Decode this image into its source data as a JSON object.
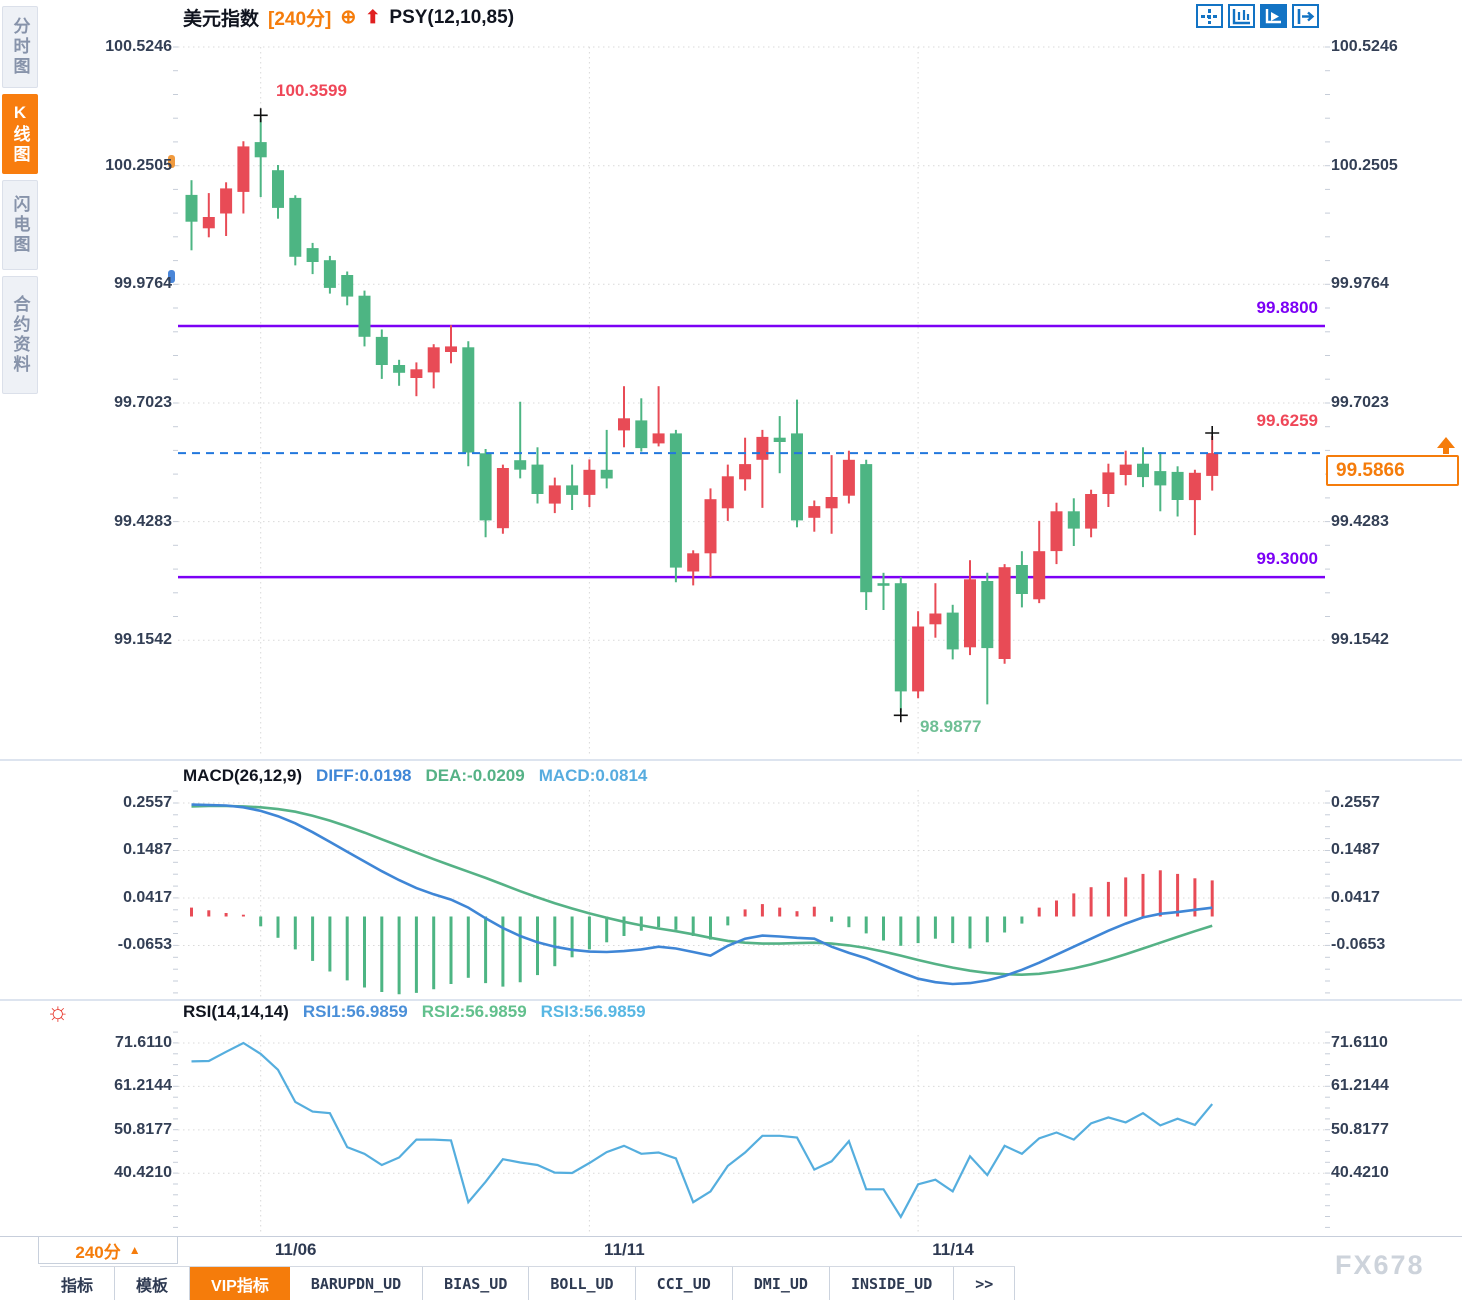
{
  "header": {
    "symbol": "美元指数",
    "period_tag": "[240分]",
    "add_icon": "⊕",
    "arrow_icon": "⬆",
    "indicator": "PSY(12,10,85)"
  },
  "sidebar": {
    "tabs": [
      {
        "label": "分时图",
        "active": false
      },
      {
        "label": "K线图",
        "active": true
      },
      {
        "label": "闪电图",
        "active": false
      },
      {
        "label": "合约资料",
        "active": false
      }
    ]
  },
  "toolbar_icons": [
    "crosshair-tool",
    "axis-range-tool",
    "axis-play-tool",
    "export-tool"
  ],
  "overlays": {
    "high_label": "100.3599",
    "low_label": "98.9877",
    "last_high_label": "99.6259",
    "hline_upper_label": "99.8800",
    "hline_lower_label": "99.3000",
    "price_box_value": "99.5866"
  },
  "macd_header": {
    "title": "MACD(26,12,9)",
    "diff_label": "DIFF:0.0198",
    "dea_label": "DEA:-0.0209",
    "macd_label": "MACD:0.0814"
  },
  "rsi_header": {
    "title": "RSI(14,14,14)",
    "rsi1_label": "RSI1:56.9859",
    "rsi2_label": "RSI2:56.9859",
    "rsi3_label": "RSI3:56.9859"
  },
  "footer": {
    "period": "240分",
    "period_arrow": "▲",
    "dates": [
      "11/06",
      "11/11",
      "11/14"
    ],
    "tabs": [
      {
        "label": "指标",
        "mono": false,
        "active": false
      },
      {
        "label": "模板",
        "mono": false,
        "active": false
      },
      {
        "label": "VIP指标",
        "mono": false,
        "active": true
      },
      {
        "label": "BARUPDN_UD",
        "mono": true,
        "active": false
      },
      {
        "label": "BIAS_UD",
        "mono": true,
        "active": false
      },
      {
        "label": "BOLL_UD",
        "mono": true,
        "active": false
      },
      {
        "label": "CCI_UD",
        "mono": true,
        "active": false
      },
      {
        "label": "DMI_UD",
        "mono": true,
        "active": false
      },
      {
        "label": "INSIDE_UD",
        "mono": true,
        "active": false
      },
      {
        "label": ">>",
        "mono": true,
        "active": false
      }
    ],
    "watermark": "FX678"
  },
  "colors": {
    "up_red": "#e84b56",
    "down_green": "#4db583",
    "purple_line": "#7c00f5",
    "dashed_blue": "#2277dd",
    "diff_blue": "#3f86d6",
    "dea_green": "#55b286",
    "macd_cyan": "#57acdf",
    "rsi_line": "#55aede",
    "accent_orange": "#f57c0b",
    "annotation_red": "#ef4758",
    "annotation_green": "#6fbf95",
    "axis_text": "#333f55",
    "icon_blue": "#1273c4",
    "grid_dot": "#d9d9d9"
  },
  "chart_data": [
    {
      "type": "candlestick",
      "title": "美元指数 240分 K线",
      "y_ticks": [
        100.5246,
        100.2505,
        99.9764,
        99.7023,
        99.4283,
        99.1542
      ],
      "date_ticks": [
        {
          "label": "11/06",
          "bar": 4
        },
        {
          "label": "11/11",
          "bar": 23
        },
        {
          "label": "11/14",
          "bar": 42
        }
      ],
      "hlines": [
        99.88,
        99.3
      ],
      "current_price": 99.5866,
      "markers": [
        {
          "bar": 4,
          "type": "high",
          "price": 100.3599
        },
        {
          "bar": 41,
          "type": "low",
          "price": 98.9877
        },
        {
          "bar": 59,
          "type": "high",
          "price": 99.6259
        }
      ],
      "ohlc": [
        [
          100.183,
          100.217,
          100.055,
          100.121
        ],
        [
          100.106,
          100.187,
          100.085,
          100.132
        ],
        [
          100.14,
          100.212,
          100.088,
          100.198
        ],
        [
          100.19,
          100.307,
          100.14,
          100.295
        ],
        [
          100.305,
          100.3599,
          100.178,
          100.27
        ],
        [
          100.24,
          100.252,
          100.128,
          100.153
        ],
        [
          100.176,
          100.182,
          100.02,
          100.04
        ],
        [
          100.06,
          100.072,
          100.0,
          100.028
        ],
        [
          100.032,
          100.042,
          99.955,
          99.968
        ],
        [
          99.998,
          100.006,
          99.928,
          99.948
        ],
        [
          99.95,
          99.962,
          99.833,
          99.855
        ],
        [
          99.855,
          99.872,
          99.758,
          99.79
        ],
        [
          99.79,
          99.802,
          99.742,
          99.772
        ],
        [
          99.76,
          99.796,
          99.718,
          99.78
        ],
        [
          99.773,
          99.838,
          99.736,
          99.831
        ],
        [
          99.82,
          99.882,
          99.794,
          99.833
        ],
        [
          99.831,
          99.845,
          99.556,
          99.588
        ],
        [
          99.586,
          99.596,
          99.392,
          99.431
        ],
        [
          99.413,
          99.56,
          99.4,
          99.552
        ],
        [
          99.57,
          99.705,
          99.528,
          99.548
        ],
        [
          99.56,
          99.6,
          99.47,
          99.492
        ],
        [
          99.47,
          99.53,
          99.448,
          99.512
        ],
        [
          99.512,
          99.56,
          99.455,
          99.49
        ],
        [
          99.49,
          99.572,
          99.462,
          99.548
        ],
        [
          99.548,
          99.64,
          99.505,
          99.528
        ],
        [
          99.639,
          99.741,
          99.6,
          99.667
        ],
        [
          99.662,
          99.713,
          99.59,
          99.598
        ],
        [
          99.609,
          99.741,
          99.602,
          99.632
        ],
        [
          99.632,
          99.64,
          99.288,
          99.322
        ],
        [
          99.313,
          99.362,
          99.281,
          99.355
        ],
        [
          99.355,
          99.505,
          99.3,
          99.48
        ],
        [
          99.459,
          99.56,
          99.43,
          99.533
        ],
        [
          99.526,
          99.622,
          99.5,
          99.561
        ],
        [
          99.571,
          99.64,
          99.46,
          99.624
        ],
        [
          99.622,
          99.672,
          99.54,
          99.612
        ],
        [
          99.632,
          99.71,
          99.415,
          99.431
        ],
        [
          99.437,
          99.477,
          99.405,
          99.464
        ],
        [
          99.459,
          99.582,
          99.4,
          99.485
        ],
        [
          99.488,
          99.592,
          99.47,
          99.571
        ],
        [
          99.561,
          99.571,
          99.224,
          99.265
        ],
        [
          99.286,
          99.31,
          99.224,
          99.28
        ],
        [
          99.286,
          99.3,
          98.9877,
          99.036
        ],
        [
          99.036,
          99.221,
          99.02,
          99.186
        ],
        [
          99.191,
          99.286,
          99.16,
          99.216
        ],
        [
          99.218,
          99.236,
          99.11,
          99.133
        ],
        [
          99.138,
          99.339,
          99.12,
          99.295
        ],
        [
          99.291,
          99.31,
          99.006,
          99.136
        ],
        [
          99.111,
          99.33,
          99.1,
          99.323
        ],
        [
          99.328,
          99.36,
          99.23,
          99.261
        ],
        [
          99.249,
          99.43,
          99.24,
          99.36
        ],
        [
          99.36,
          99.472,
          99.33,
          99.452
        ],
        [
          99.452,
          99.482,
          99.372,
          99.412
        ],
        [
          99.412,
          99.502,
          99.392,
          99.492
        ],
        [
          99.492,
          99.562,
          99.462,
          99.542
        ],
        [
          99.536,
          99.592,
          99.512,
          99.56
        ],
        [
          99.562,
          99.6,
          99.508,
          99.531
        ],
        [
          99.545,
          99.589,
          99.452,
          99.512
        ],
        [
          99.543,
          99.556,
          99.44,
          99.478
        ],
        [
          99.478,
          99.548,
          99.397,
          99.541
        ],
        [
          99.534,
          99.6259,
          99.5,
          99.5866
        ]
      ]
    },
    {
      "type": "macd",
      "title": "MACD(26,12,9)",
      "y_ticks": [
        0.2557,
        0.1487,
        0.0417,
        -0.0653
      ],
      "diff": 0.0198,
      "dea": -0.0209,
      "macd": 0.0814,
      "hist_values": [
        0.02,
        0.014,
        0.008,
        0.004,
        -0.022,
        -0.048,
        -0.074,
        -0.1,
        -0.124,
        -0.144,
        -0.16,
        -0.17,
        -0.175,
        -0.172,
        -0.164,
        -0.152,
        -0.138,
        -0.15,
        -0.158,
        -0.148,
        -0.132,
        -0.112,
        -0.092,
        -0.074,
        -0.058,
        -0.044,
        -0.032,
        -0.024,
        -0.03,
        -0.044,
        -0.052,
        -0.02,
        0.016,
        0.028,
        0.02,
        0.012,
        0.022,
        -0.012,
        -0.024,
        -0.038,
        -0.054,
        -0.066,
        -0.06,
        -0.05,
        -0.06,
        -0.072,
        -0.058,
        -0.036,
        -0.016,
        0.02,
        0.036,
        0.052,
        0.066,
        0.078,
        0.088,
        0.096,
        0.104,
        0.096,
        0.086,
        0.0814
      ],
      "diff_values": [
        0.252,
        0.251,
        0.25,
        0.246,
        0.238,
        0.226,
        0.21,
        0.19,
        0.168,
        0.146,
        0.124,
        0.102,
        0.082,
        0.064,
        0.05,
        0.038,
        0.02,
        -0.004,
        -0.026,
        -0.044,
        -0.058,
        -0.068,
        -0.075,
        -0.079,
        -0.08,
        -0.078,
        -0.074,
        -0.068,
        -0.072,
        -0.08,
        -0.088,
        -0.066,
        -0.05,
        -0.043,
        -0.045,
        -0.048,
        -0.05,
        -0.068,
        -0.082,
        -0.094,
        -0.11,
        -0.126,
        -0.14,
        -0.148,
        -0.152,
        -0.15,
        -0.144,
        -0.134,
        -0.12,
        -0.104,
        -0.086,
        -0.068,
        -0.05,
        -0.032,
        -0.016,
        -0.002,
        0.006,
        0.01,
        0.015,
        0.0198
      ],
      "dea_values": [
        0.248,
        0.249,
        0.249,
        0.248,
        0.246,
        0.242,
        0.236,
        0.227,
        0.216,
        0.203,
        0.189,
        0.174,
        0.159,
        0.144,
        0.129,
        0.115,
        0.101,
        0.087,
        0.072,
        0.057,
        0.043,
        0.03,
        0.018,
        0.007,
        -0.003,
        -0.012,
        -0.02,
        -0.027,
        -0.033,
        -0.04,
        -0.048,
        -0.055,
        -0.059,
        -0.061,
        -0.061,
        -0.06,
        -0.059,
        -0.061,
        -0.065,
        -0.071,
        -0.079,
        -0.088,
        -0.098,
        -0.107,
        -0.115,
        -0.122,
        -0.127,
        -0.13,
        -0.131,
        -0.129,
        -0.124,
        -0.117,
        -0.108,
        -0.097,
        -0.085,
        -0.072,
        -0.059,
        -0.046,
        -0.033,
        -0.0209
      ]
    },
    {
      "type": "line",
      "title": "RSI(14,14,14)",
      "note": "RSI1, RSI2, RSI3 curves overlap (identical values)",
      "y_ticks": [
        71.611,
        61.2144,
        50.8177,
        40.421
      ],
      "rsi_values": [
        67.2,
        67.3,
        69.5,
        71.6,
        69.0,
        65.2,
        57.5,
        55.2,
        54.8,
        46.7,
        45.1,
        42.4,
        44.2,
        48.5,
        48.5,
        48.3,
        33.5,
        38.4,
        43.8,
        43.0,
        42.4,
        40.6,
        40.5,
        42.9,
        45.5,
        47.0,
        45.1,
        45.4,
        44.0,
        33.5,
        36.1,
        42.2,
        45.4,
        49.4,
        49.4,
        49.0,
        41.3,
        43.3,
        48.1,
        36.6,
        36.6,
        30.0,
        37.8,
        38.9,
        36.1,
        44.5,
        40.0,
        47.0,
        45.1,
        48.8,
        50.2,
        48.5,
        52.4,
        53.8,
        52.6,
        54.8,
        51.9,
        53.5,
        52.0,
        56.9859
      ]
    }
  ]
}
